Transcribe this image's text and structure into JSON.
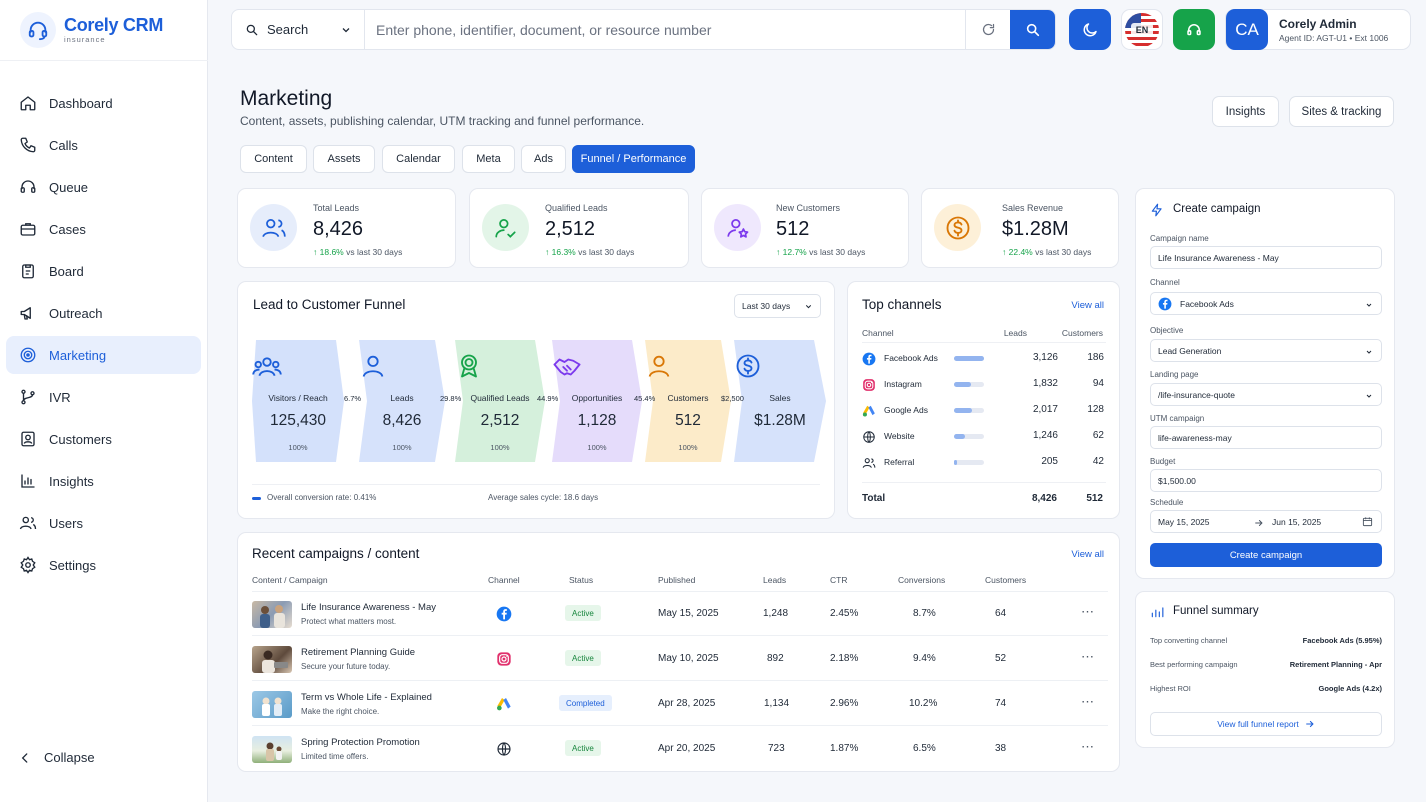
{
  "app": {
    "name": "Corely CRM",
    "tagline": "insurance",
    "logo_icon": "headset-icon"
  },
  "sidebar": {
    "items": [
      {
        "label": "Dashboard",
        "icon": "home-icon"
      },
      {
        "label": "Calls",
        "icon": "phone-icon"
      },
      {
        "label": "Queue",
        "icon": "headset-icon"
      },
      {
        "label": "Cases",
        "icon": "briefcase-icon"
      },
      {
        "label": "Board",
        "icon": "clipboard-icon"
      },
      {
        "label": "Outreach",
        "icon": "megaphone-icon"
      },
      {
        "label": "Marketing",
        "icon": "target-icon",
        "active": true
      },
      {
        "label": "IVR",
        "icon": "branch-icon"
      },
      {
        "label": "Customers",
        "icon": "contact-icon"
      },
      {
        "label": "Insights",
        "icon": "bar-chart-icon"
      },
      {
        "label": "Users",
        "icon": "users-icon"
      },
      {
        "label": "Settings",
        "icon": "gear-icon"
      }
    ],
    "collapse_label": "Collapse"
  },
  "topbar": {
    "search_type": "Search",
    "search_placeholder": "Enter phone, identifier, document, or resource number",
    "language": "EN",
    "user": {
      "initials": "CA",
      "name": "Corely Admin",
      "meta": "Agent ID: AGT-U1 • Ext 1006"
    }
  },
  "header": {
    "title": "Marketing",
    "subtitle": "Content, assets, publishing calendar, UTM tracking and funnel performance.",
    "buttons": [
      "Insights",
      "Sites & tracking"
    ]
  },
  "tabs": [
    "Content",
    "Assets",
    "Calendar",
    "Meta",
    "Ads",
    "Funnel / Performance"
  ],
  "active_tab": "Funnel / Performance",
  "kpis": [
    {
      "label": "Total Leads",
      "value": "8,426",
      "change": "18.6%",
      "note": "vs last 30 days",
      "icon": "users-icon",
      "color": "#1d5fd9"
    },
    {
      "label": "Qualified Leads",
      "value": "2,512",
      "change": "16.3%",
      "note": "vs last 30 days",
      "icon": "user-check-icon",
      "color": "#16a34a"
    },
    {
      "label": "New Customers",
      "value": "512",
      "change": "12.7%",
      "note": "vs last 30 days",
      "icon": "user-star-icon",
      "color": "#7c3aed"
    },
    {
      "label": "Sales Revenue",
      "value": "$1.28M",
      "change": "22.4%",
      "note": "vs last 30 days",
      "icon": "dollar-coin-icon",
      "color": "#d97706"
    }
  ],
  "funnel": {
    "title": "Lead to Customer Funnel",
    "period": "Last 30 days",
    "stages": [
      {
        "label": "Visitors / Reach",
        "value": "125,430",
        "pct": "100%",
        "icon": "users-icon",
        "color": "#d4e1fb"
      },
      {
        "label": "Leads",
        "value": "8,426",
        "pct": "100%",
        "icon": "user-icon",
        "color": "#d6e2fb"
      },
      {
        "label": "Qualified Leads",
        "value": "2,512",
        "pct": "100%",
        "icon": "badge-icon",
        "color": "#d5f0dc"
      },
      {
        "label": "Opportunities",
        "value": "1,128",
        "pct": "100%",
        "icon": "handshake-icon",
        "color": "#e5dcfb"
      },
      {
        "label": "Customers",
        "value": "512",
        "pct": "100%",
        "icon": "user-icon",
        "color": "#fcebc9"
      },
      {
        "label": "Sales",
        "value": "$1.28M",
        "pct": "",
        "icon": "dollar-icon",
        "color": "#d6e2fb"
      }
    ],
    "conversions": [
      "6.7%",
      "29.8%",
      "44.9%",
      "45.4%",
      "$2,500"
    ],
    "overall": "Overall conversion rate: 0.41%",
    "sales_cycle": "Average sales cycle: 18.6 days"
  },
  "top_channels": {
    "title": "Top channels",
    "view_all": "View all",
    "columns": [
      "Channel",
      "Leads",
      "Customers"
    ],
    "rows": [
      {
        "name": "Facebook Ads",
        "leads": "3,126",
        "customers": "186",
        "share": 1.0,
        "icon": "facebook-icon"
      },
      {
        "name": "Instagram",
        "leads": "1,832",
        "customers": "94",
        "share": 0.55,
        "icon": "instagram-icon"
      },
      {
        "name": "Google Ads",
        "leads": "2,017",
        "customers": "128",
        "share": 0.6,
        "icon": "google-ads-icon"
      },
      {
        "name": "Website",
        "leads": "1,246",
        "customers": "62",
        "share": 0.35,
        "icon": "globe-icon"
      },
      {
        "name": "Referral",
        "leads": "205",
        "customers": "42",
        "share": 0.1,
        "icon": "users-icon"
      }
    ],
    "total": {
      "label": "Total",
      "leads": "8,426",
      "customers": "512"
    }
  },
  "recent": {
    "title": "Recent campaigns / content",
    "view_all": "View all",
    "columns": [
      "Content / Campaign",
      "Channel",
      "Status",
      "Published",
      "Leads",
      "CTR",
      "Conversions",
      "Customers"
    ],
    "rows": [
      {
        "title": "Life Insurance Awareness - May",
        "sub": "Protect what matters most.",
        "channel": "facebook-icon",
        "status": "Active",
        "published": "May 15, 2025",
        "leads": "1,248",
        "ctr": "2.45%",
        "conv": "8.7%",
        "customers": "64"
      },
      {
        "title": "Retirement Planning Guide",
        "sub": "Secure your future today.",
        "channel": "instagram-icon",
        "status": "Active",
        "published": "May 10, 2025",
        "leads": "892",
        "ctr": "2.18%",
        "conv": "9.4%",
        "customers": "52"
      },
      {
        "title": "Term vs Whole Life - Explained",
        "sub": "Make the right choice.",
        "channel": "google-ads-icon",
        "status": "Completed",
        "published": "Apr 28, 2025",
        "leads": "1,134",
        "ctr": "2.96%",
        "conv": "10.2%",
        "customers": "74"
      },
      {
        "title": "Spring Protection Promotion",
        "sub": "Limited time offers.",
        "channel": "globe-icon",
        "status": "Active",
        "published": "Apr 20, 2025",
        "leads": "723",
        "ctr": "1.87%",
        "conv": "6.5%",
        "customers": "38"
      }
    ]
  },
  "create_campaign": {
    "title": "Create campaign",
    "fields": {
      "name_label": "Campaign name",
      "name_value": "Life Insurance Awareness - May",
      "channel_label": "Channel",
      "channel_value": "Facebook Ads",
      "objective_label": "Objective",
      "objective_value": "Lead Generation",
      "landing_label": "Landing page",
      "landing_value": "/life-insurance-quote",
      "utm_label": "UTM campaign",
      "utm_value": "life-awareness-may",
      "budget_label": "Budget",
      "budget_value": "$1,500.00",
      "schedule_label": "Schedule",
      "start": "May 15, 2025",
      "end": "Jun 15, 2025"
    },
    "submit": "Create campaign"
  },
  "funnel_summary": {
    "title": "Funnel summary",
    "rows": [
      {
        "k": "Top converting channel",
        "v": "Facebook Ads (5.95%)"
      },
      {
        "k": "Best performing campaign",
        "v": "Retirement Planning - Apr"
      },
      {
        "k": "Highest ROI",
        "v": "Google Ads (4.2x)"
      }
    ],
    "link": "View full funnel report"
  },
  "colors": {
    "accent": "#1d5fd9",
    "positive": "#16a34a"
  }
}
